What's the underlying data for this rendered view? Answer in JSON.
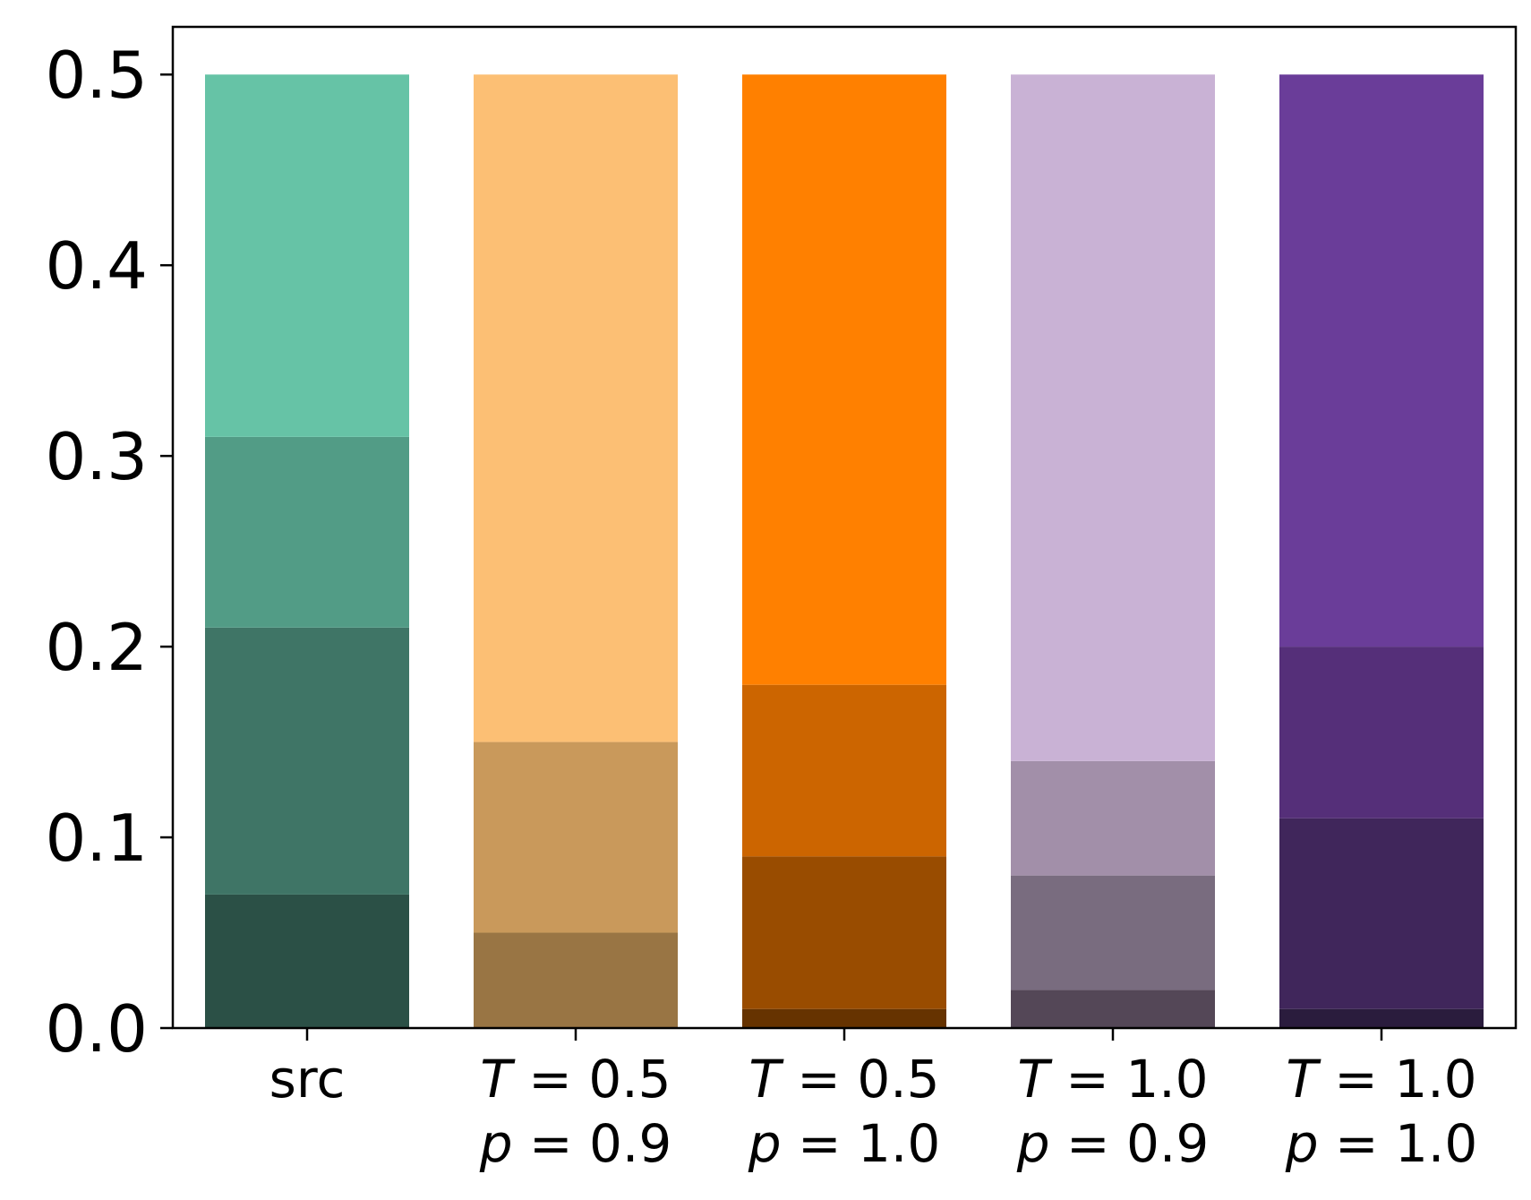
{
  "chart_data": {
    "type": "bar",
    "stacked": true,
    "title": "",
    "xlabel": "",
    "ylabel": "",
    "ylim": [
      0,
      0.525
    ],
    "yticks": [
      "0.0",
      "0.1",
      "0.2",
      "0.3",
      "0.4",
      "0.5"
    ],
    "grid": false,
    "categories": [
      {
        "name": "src",
        "line1": [
          {
            "t": "src",
            "i": false
          }
        ],
        "line2": []
      },
      {
        "name": "T = 0.5, p = 0.9",
        "line1": [
          {
            "t": "T",
            "i": true
          },
          {
            "t": " = 0.5",
            "i": false
          }
        ],
        "line2": [
          {
            "t": "p",
            "i": true
          },
          {
            "t": " = 0.9",
            "i": false
          }
        ]
      },
      {
        "name": "T = 0.5, p = 1.0",
        "line1": [
          {
            "t": "T",
            "i": true
          },
          {
            "t": " = 0.5",
            "i": false
          }
        ],
        "line2": [
          {
            "t": "p",
            "i": true
          },
          {
            "t": " = 1.0",
            "i": false
          }
        ]
      },
      {
        "name": "T = 1.0, p = 0.9",
        "line1": [
          {
            "t": "T",
            "i": true
          },
          {
            "t": " = 1.0",
            "i": false
          }
        ],
        "line2": [
          {
            "t": "p",
            "i": true
          },
          {
            "t": " = 0.9",
            "i": false
          }
        ]
      },
      {
        "name": "T = 1.0, p = 1.0",
        "line1": [
          {
            "t": "T",
            "i": true
          },
          {
            "t": " = 1.0",
            "i": false
          }
        ],
        "line2": [
          {
            "t": "p",
            "i": true
          },
          {
            "t": " = 1.0",
            "i": false
          }
        ]
      }
    ],
    "bars": [
      {
        "segments": [
          {
            "value": 0.07,
            "color": "#2b5046"
          },
          {
            "value": 0.21,
            "color": "#3f7566"
          },
          {
            "value": 0.31,
            "color": "#529c86"
          },
          {
            "value": 0.5,
            "color": "#66c3a6"
          }
        ]
      },
      {
        "segments": [
          {
            "value": 0.05,
            "color": "#997544"
          },
          {
            "value": 0.15,
            "color": "#c9995b"
          },
          {
            "value": 0.5,
            "color": "#fcbf74"
          }
        ]
      },
      {
        "segments": [
          {
            "value": 0.01,
            "color": "#663300"
          },
          {
            "value": 0.09,
            "color": "#994c00"
          },
          {
            "value": 0.18,
            "color": "#cc6500"
          },
          {
            "value": 0.5,
            "color": "#ff8000"
          }
        ]
      },
      {
        "segments": [
          {
            "value": 0.02,
            "color": "#544757"
          },
          {
            "value": 0.08,
            "color": "#796c7f"
          },
          {
            "value": 0.14,
            "color": "#a28fa9"
          },
          {
            "value": 0.5,
            "color": "#c9b2d5"
          }
        ]
      },
      {
        "segments": [
          {
            "value": 0.01,
            "color": "#2a1c3d"
          },
          {
            "value": 0.11,
            "color": "#40265b"
          },
          {
            "value": 0.2,
            "color": "#552f79"
          },
          {
            "value": 0.5,
            "color": "#6a3d99"
          }
        ]
      }
    ]
  }
}
